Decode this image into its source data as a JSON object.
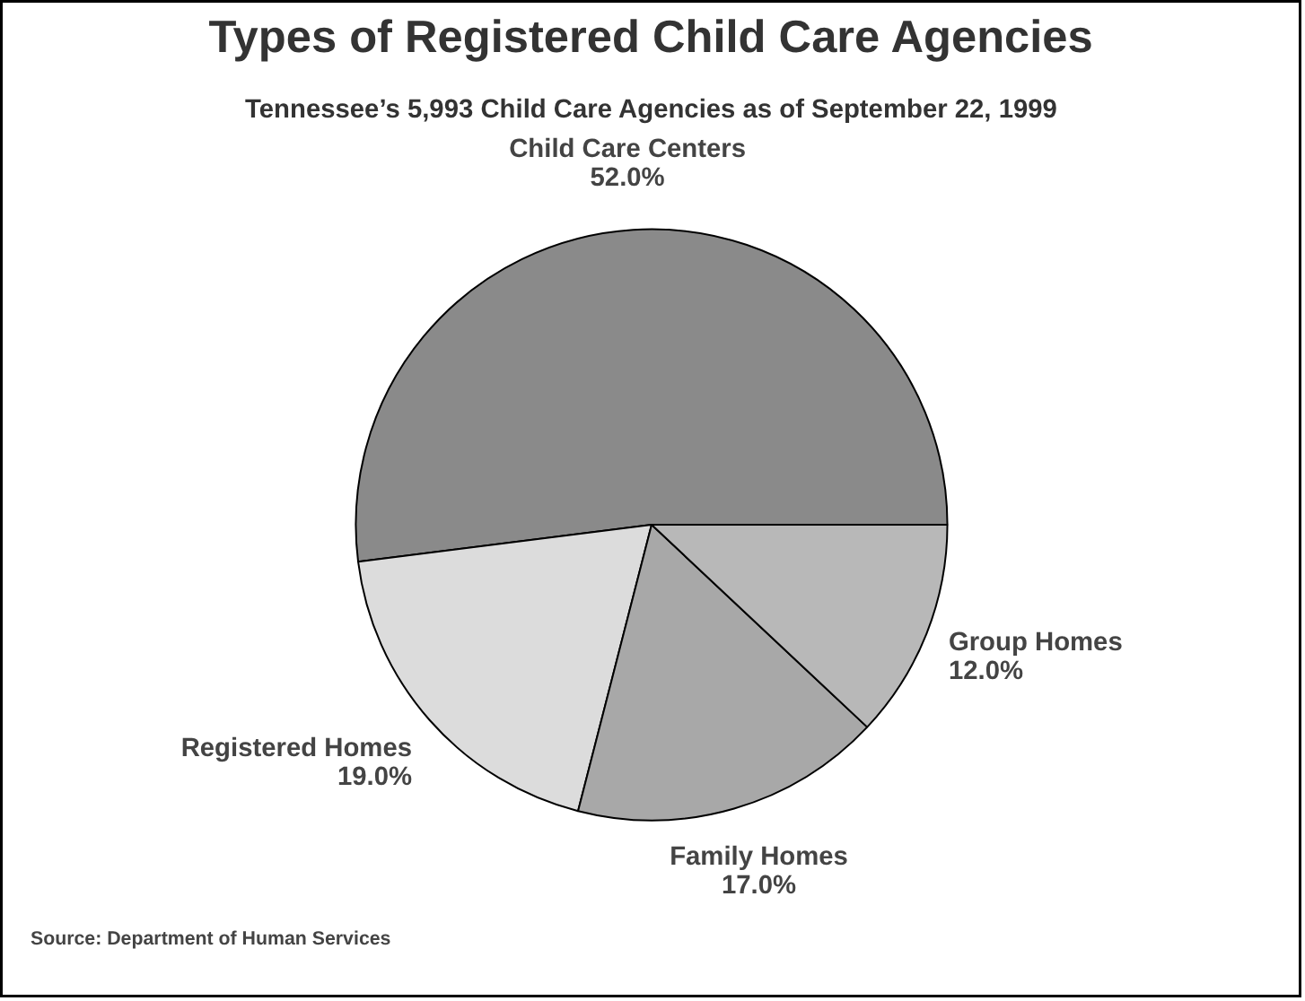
{
  "chart_data": {
    "type": "pie",
    "title": "Types of Registered Child Care Agencies",
    "subtitle": "Tennessee’s 5,993 Child Care Agencies as of September 22, 1999",
    "categories": [
      "Child Care Centers",
      "Registered Homes",
      "Family Homes",
      "Group Homes"
    ],
    "values": [
      52.0,
      19.0,
      17.0,
      12.0
    ],
    "colors": [
      "#8a8a8a",
      "#dcdcdc",
      "#a8a8a8",
      "#b8b8b8"
    ],
    "value_labels": [
      "52.0%",
      "19.0%",
      "17.0%",
      "12.0%"
    ],
    "annotations": [
      "Source: Department of Human Services"
    ]
  }
}
